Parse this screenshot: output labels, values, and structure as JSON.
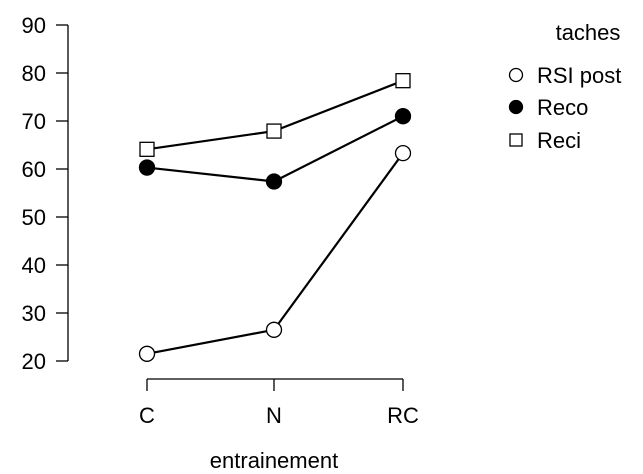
{
  "chart_data": {
    "type": "line",
    "categories": [
      "C",
      "N",
      "RC"
    ],
    "xlabel": "entrainement",
    "ylabel": "",
    "ylim": [
      20,
      90
    ],
    "yticks": [
      20,
      30,
      40,
      50,
      60,
      70,
      80,
      90
    ],
    "grid": false,
    "legend": {
      "title": "taches",
      "placement": "right"
    },
    "series": [
      {
        "name": "RSI post",
        "marker": "open-circle",
        "values": [
          21.5,
          26.5,
          63.3
        ]
      },
      {
        "name": "Reco",
        "marker": "filled-circle",
        "values": [
          60.3,
          57.4,
          71.0
        ]
      },
      {
        "name": "Reci",
        "marker": "open-square",
        "values": [
          64.1,
          67.9,
          78.4
        ]
      }
    ]
  }
}
